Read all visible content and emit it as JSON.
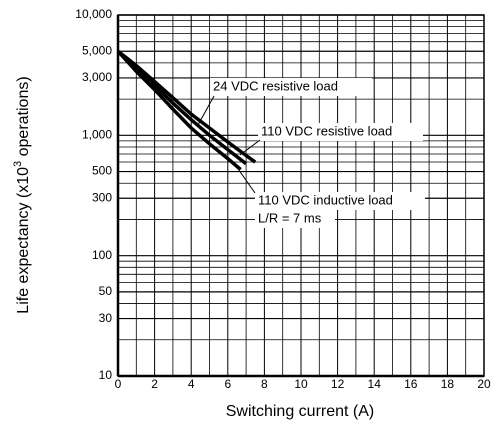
{
  "chart_data": {
    "type": "line",
    "xlabel": "Switching current (A)",
    "ylabel": [
      "Life expectancy (x10",
      "3",
      " operations)"
    ],
    "ylog": true,
    "grid": true,
    "xlim": [
      0,
      20
    ],
    "xticks": [
      0,
      2,
      4,
      6,
      8,
      10,
      12,
      14,
      16,
      18,
      20
    ],
    "xticks_minor": [
      1,
      3,
      5,
      7,
      9,
      11,
      13,
      15,
      17,
      19
    ],
    "ylim": [
      10,
      10000
    ],
    "yticks": [
      {
        "value": 10000,
        "label": "10,000"
      },
      {
        "value": 5000,
        "label": "5,000"
      },
      {
        "value": 3000,
        "label": "3,000"
      },
      {
        "value": 1000,
        "label": "1,000"
      },
      500,
      300,
      100,
      50,
      30,
      10
    ],
    "yticks_minor": [
      20,
      40,
      60,
      70,
      80,
      90,
      200,
      400,
      600,
      700,
      800,
      900,
      2000,
      4000,
      6000,
      7000,
      8000,
      9000
    ],
    "series": [
      {
        "name": "24 VDC resistive load",
        "color": "#000000",
        "x": [
          0,
          1,
          2,
          3,
          4,
          5,
          6,
          7,
          7.5
        ],
        "values": [
          5000,
          3800,
          2800,
          2050,
          1500,
          1150,
          880,
          680,
          600
        ]
      },
      {
        "name": "110 VDC resistive load",
        "color": "#000000",
        "x": [
          0,
          1,
          2,
          3,
          4,
          5,
          6,
          7
        ],
        "values": [
          5000,
          3600,
          2600,
          1850,
          1350,
          1000,
          760,
          580
        ]
      },
      {
        "name": "110 VDC inductive load",
        "color": "#000000",
        "x": [
          0,
          1,
          2,
          3,
          4,
          5,
          6,
          6.7
        ],
        "values": [
          5000,
          3400,
          2400,
          1650,
          1150,
          850,
          640,
          520
        ]
      }
    ],
    "annotations": [
      "L/R = 7 ms"
    ]
  }
}
